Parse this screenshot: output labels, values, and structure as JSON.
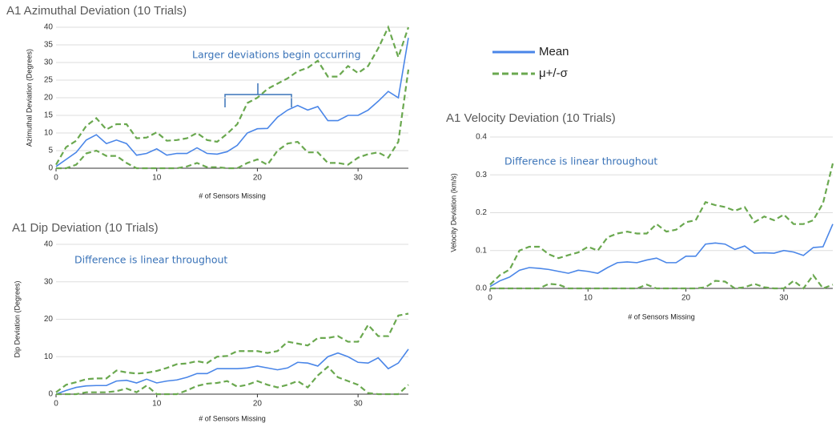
{
  "legend": [
    {
      "name": "Mean",
      "color": "#4a86e8",
      "dashed": false
    },
    {
      "name": "μ+/-σ",
      "color": "#6aa84f",
      "dashed": true
    }
  ],
  "chart_data": [
    {
      "type": "line",
      "title": "A1 Azimuthal Deviation (10 Trials)",
      "x_label": "# of Sensors Missing",
      "y_label": "Azimuthal Deviation (Degrees)",
      "annotation": "Larger deviations begin occurring",
      "x": [
        0,
        1,
        2,
        3,
        4,
        5,
        6,
        7,
        8,
        9,
        10,
        11,
        12,
        13,
        14,
        15,
        16,
        17,
        18,
        19,
        20,
        21,
        22,
        23,
        24,
        25,
        26,
        27,
        28,
        29,
        30,
        31,
        32,
        33,
        34,
        35
      ],
      "xlim": [
        0,
        35
      ],
      "xticks": [
        0,
        10,
        20,
        30
      ],
      "ylim": [
        0,
        40
      ],
      "yticks": [
        0,
        5,
        10,
        15,
        20,
        25,
        30,
        35,
        40
      ],
      "grid": true,
      "series": [
        {
          "color": "#4a86e8",
          "dashed": false,
          "values": [
            0.5,
            2.5,
            4.5,
            8,
            9.5,
            7,
            8,
            7,
            3.7,
            4.2,
            5.5,
            3.7,
            4.2,
            4.2,
            5.8,
            4.2,
            4,
            4.7,
            6.5,
            10,
            11.2,
            11.3,
            14.5,
            16.5,
            17.8,
            16.5,
            17.5,
            13.5,
            13.5,
            15,
            15,
            16.5,
            19,
            21.8,
            20,
            37
          ]
        },
        {
          "color": "#6aa84f",
          "dashed": true,
          "values": [
            1,
            6,
            7.8,
            12,
            14.2,
            11,
            12.5,
            12.5,
            8.5,
            8.7,
            10.2,
            7.8,
            8,
            8.5,
            10,
            8,
            7.5,
            9.8,
            12.5,
            18.5,
            20,
            22.5,
            24,
            25.5,
            27.5,
            28.5,
            30.5,
            26,
            26,
            29,
            27,
            29,
            34,
            40,
            31.5,
            40
          ]
        },
        {
          "color": "#6aa84f",
          "dashed": true,
          "values": [
            0,
            0,
            1,
            4.2,
            5,
            3.5,
            3.5,
            1.5,
            0,
            0,
            0,
            0,
            0,
            0.5,
            1.5,
            0.3,
            0.3,
            0,
            0,
            1.5,
            2.5,
            1,
            5,
            7,
            7.5,
            4.5,
            4.5,
            1.5,
            1.5,
            1,
            3,
            4,
            4.5,
            3,
            7.5,
            28
          ]
        }
      ]
    },
    {
      "type": "line",
      "title": "A1 Dip Deviation (10 Trials)",
      "x_label": "# of Sensors Missing",
      "y_label": "Dip Deviation (Degrees)",
      "annotation": "Difference is linear throughout",
      "x": [
        0,
        1,
        2,
        3,
        4,
        5,
        6,
        7,
        8,
        9,
        10,
        11,
        12,
        13,
        14,
        15,
        16,
        17,
        18,
        19,
        20,
        21,
        22,
        23,
        24,
        25,
        26,
        27,
        28,
        29,
        30,
        31,
        32,
        33,
        34,
        35
      ],
      "xlim": [
        0,
        35
      ],
      "xticks": [
        0,
        10,
        20,
        30
      ],
      "ylim": [
        0,
        40
      ],
      "yticks": [
        0,
        10,
        20,
        30,
        40
      ],
      "grid": true,
      "series": [
        {
          "color": "#4a86e8",
          "dashed": false,
          "values": [
            0,
            1,
            1.8,
            2.2,
            2.3,
            2.3,
            3.5,
            3.7,
            3,
            4,
            3,
            3.5,
            3.8,
            4.5,
            5.5,
            5.5,
            6.8,
            6.8,
            6.8,
            7,
            7.5,
            7,
            6.5,
            7,
            8.5,
            8.3,
            7.5,
            10,
            11,
            10,
            8.5,
            8.3,
            9.7,
            6.8,
            8.3,
            12
          ]
        },
        {
          "color": "#6aa84f",
          "dashed": true,
          "values": [
            0.5,
            2.5,
            3.2,
            4,
            4.2,
            4.2,
            6.3,
            5.8,
            5.5,
            5.7,
            6.2,
            7,
            8,
            8.2,
            8.8,
            8.3,
            10,
            10.2,
            11.5,
            11.5,
            11.5,
            11,
            11.5,
            14,
            13.5,
            13,
            15,
            15,
            15.5,
            14,
            14,
            18.5,
            15.5,
            15.5,
            21,
            21.5
          ]
        },
        {
          "color": "#6aa84f",
          "dashed": true,
          "values": [
            0,
            0,
            0,
            0.5,
            0.5,
            0.5,
            0.8,
            1.5,
            0.5,
            2.3,
            0,
            0,
            0,
            1,
            2.2,
            2.8,
            3,
            3.5,
            2,
            2.5,
            3.5,
            2.5,
            1.8,
            2.5,
            3.5,
            1.8,
            5,
            7.3,
            4.5,
            3.5,
            2.5,
            0.3,
            0,
            0,
            0,
            2.5
          ]
        }
      ]
    },
    {
      "type": "line",
      "title": "A1 Velocity Deviation (10 Trials)",
      "x_label": "# of Sensors Missing",
      "y_label": "Velocity Deviation (km/s)",
      "annotation": "Difference is linear throughout",
      "x": [
        0,
        1,
        2,
        3,
        4,
        5,
        6,
        7,
        8,
        9,
        10,
        11,
        12,
        13,
        14,
        15,
        16,
        17,
        18,
        19,
        20,
        21,
        22,
        23,
        24,
        25,
        26,
        27,
        28,
        29,
        30,
        31,
        32,
        33,
        34,
        35
      ],
      "xlim": [
        0,
        35
      ],
      "xticks": [
        0,
        10,
        20,
        30
      ],
      "ylim": [
        0,
        0.4
      ],
      "yticks": [
        {
          "value": 0,
          "label": "0.0"
        },
        0.1,
        0.2,
        0.3,
        0.4
      ],
      "grid": true,
      "series": [
        {
          "color": "#4a86e8",
          "dashed": false,
          "values": [
            0.005,
            0.02,
            0.03,
            0.048,
            0.055,
            0.053,
            0.05,
            0.045,
            0.04,
            0.048,
            0.045,
            0.04,
            0.055,
            0.068,
            0.07,
            0.068,
            0.075,
            0.08,
            0.068,
            0.068,
            0.085,
            0.085,
            0.117,
            0.12,
            0.117,
            0.103,
            0.112,
            0.093,
            0.094,
            0.093,
            0.1,
            0.096,
            0.087,
            0.108,
            0.11,
            0.17
          ]
        },
        {
          "color": "#6aa84f",
          "dashed": true,
          "values": [
            0.01,
            0.035,
            0.05,
            0.1,
            0.11,
            0.11,
            0.09,
            0.08,
            0.088,
            0.095,
            0.11,
            0.1,
            0.135,
            0.145,
            0.15,
            0.145,
            0.145,
            0.17,
            0.15,
            0.155,
            0.175,
            0.18,
            0.228,
            0.22,
            0.215,
            0.205,
            0.215,
            0.175,
            0.19,
            0.18,
            0.195,
            0.17,
            0.17,
            0.18,
            0.225,
            0.33
          ]
        },
        {
          "color": "#6aa84f",
          "dashed": true,
          "values": [
            0,
            0,
            0,
            0,
            0,
            0,
            0.012,
            0.01,
            0,
            0,
            0,
            0,
            0,
            0,
            0,
            0,
            0.01,
            0,
            0,
            0,
            0,
            0,
            0.003,
            0.02,
            0.018,
            0,
            0.003,
            0.012,
            0.003,
            0,
            0,
            0.02,
            0,
            0.035,
            0,
            0.01
          ]
        }
      ]
    }
  ]
}
